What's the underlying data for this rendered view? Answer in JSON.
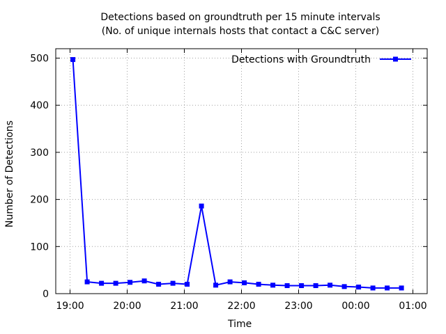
{
  "chart_data": {
    "type": "line",
    "title": "Detections based on groundtruth per 15 minute intervals",
    "subtitle": "(No. of unique internals hosts that contact a C&C server)",
    "xlabel": "Time",
    "ylabel": "Number of Detections",
    "x_ticks": [
      "19:00",
      "20:00",
      "21:00",
      "22:00",
      "23:00",
      "00:00",
      "01:00"
    ],
    "y_ticks": [
      0,
      100,
      200,
      300,
      400,
      500
    ],
    "ylim": [
      0,
      520
    ],
    "xlim_hours": [
      18.75,
      25.25
    ],
    "grid": true,
    "legend_position": "top-right",
    "series": [
      {
        "name": "Detections with Groundtruth",
        "color": "#0000ff",
        "marker": "square",
        "x": [
          "19:03",
          "19:18",
          "19:33",
          "19:48",
          "20:03",
          "20:18",
          "20:33",
          "20:48",
          "21:03",
          "21:18",
          "21:33",
          "21:48",
          "22:03",
          "22:18",
          "22:33",
          "22:48",
          "23:03",
          "23:18",
          "23:33",
          "23:48",
          "00:03",
          "00:18",
          "00:33",
          "00:48"
        ],
        "values": [
          497,
          25,
          22,
          22,
          24,
          27,
          20,
          22,
          20,
          186,
          18,
          25,
          23,
          20,
          18,
          17,
          17,
          17,
          18,
          15,
          14,
          12,
          12,
          12
        ]
      }
    ]
  }
}
